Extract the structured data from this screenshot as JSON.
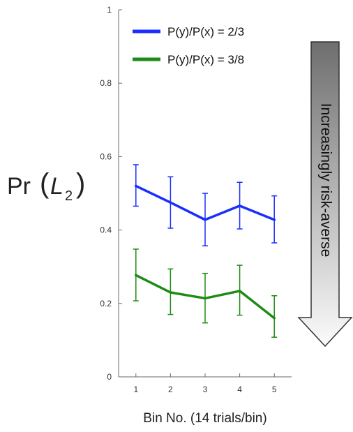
{
  "chart_data": {
    "type": "line",
    "x": [
      1,
      2,
      3,
      4,
      5
    ],
    "xlim": [
      0.5,
      5.5
    ],
    "ylim": [
      0,
      1
    ],
    "xticks": [
      "1",
      "2",
      "3",
      "4",
      "5"
    ],
    "yticks": [
      "0",
      "0.2",
      "0.4",
      "0.6",
      "0.8",
      "1"
    ],
    "ytick_values": [
      0,
      0.2,
      0.4,
      0.6,
      0.8,
      1
    ],
    "xlabel": "Bin No. (14 trials/bin)",
    "ylabel_prefix": "Pr",
    "ylabel_var": "L",
    "ylabel_sub": "2",
    "legend_position": "top",
    "grid": false,
    "series": [
      {
        "name": "P(y)/P(x) = 2/3",
        "color": "#1a2eff",
        "values": [
          0.52,
          0.475,
          0.428,
          0.466,
          0.428
        ],
        "err_low": [
          0.465,
          0.405,
          0.357,
          0.403,
          0.365
        ],
        "err_high": [
          0.578,
          0.545,
          0.5,
          0.53,
          0.493
        ]
      },
      {
        "name": "P(y)/P(x) = 3/8",
        "color": "#1e8c14",
        "values": [
          0.277,
          0.23,
          0.214,
          0.234,
          0.16
        ],
        "err_low": [
          0.207,
          0.17,
          0.147,
          0.168,
          0.108
        ],
        "err_high": [
          0.348,
          0.294,
          0.282,
          0.304,
          0.221
        ]
      }
    ],
    "annotation": {
      "text": "Increasingly risk-averse",
      "direction": "down"
    }
  }
}
